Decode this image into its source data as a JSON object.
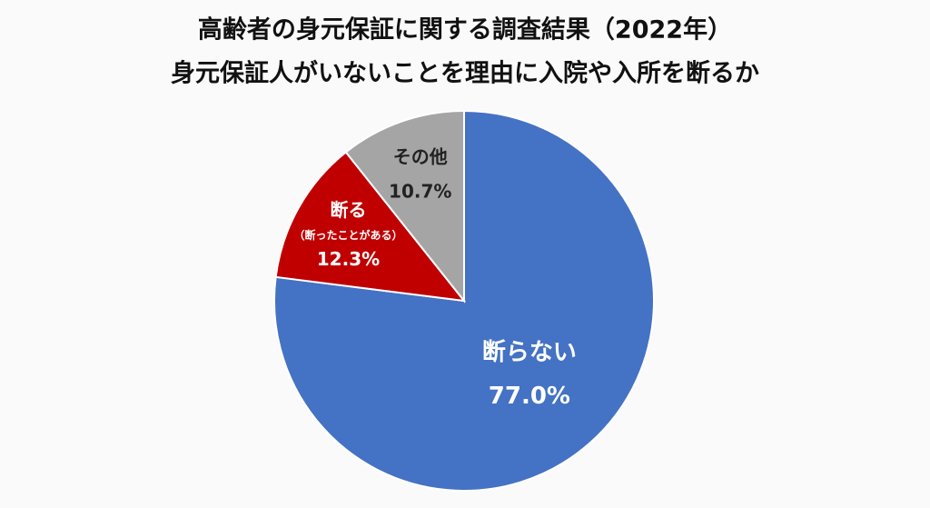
{
  "chart_data": {
    "type": "pie",
    "title": "高齢者の身元保証に関する調査結果（2022年）",
    "subtitle": "身元保証人がいないことを理由に入院や入所を断るか",
    "categories": [
      "断らない",
      "断る",
      "その他"
    ],
    "category_notes": [
      null,
      "（断ったことがある）",
      null
    ],
    "values": [
      77.0,
      12.3,
      10.7
    ],
    "value_labels": [
      "77.0%",
      "12.3%",
      "10.7%"
    ],
    "colors": [
      "#4472c4",
      "#c00000",
      "#a5a5a5"
    ],
    "label_colors": [
      "#ffffff",
      "#ffffff",
      "#222222"
    ]
  }
}
